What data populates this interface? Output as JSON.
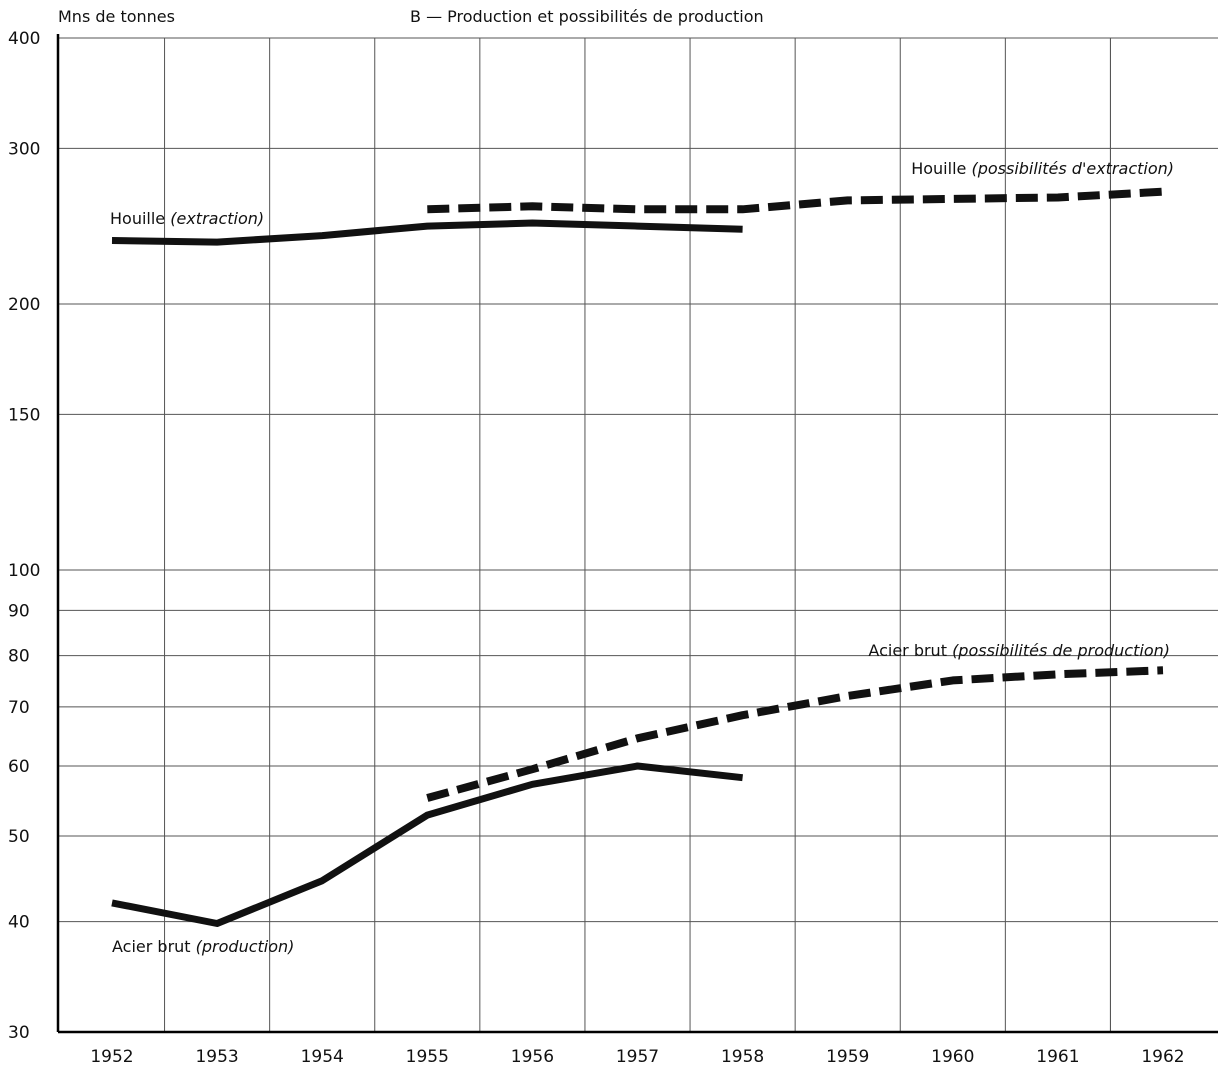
{
  "chart_data": {
    "type": "line",
    "title": "B — Production et possibilités de production",
    "ylabel": "Mns de tonnes",
    "xlabel": "",
    "y_scale": "log",
    "ylim": [
      30,
      400
    ],
    "y_ticks": [
      30,
      40,
      50,
      60,
      70,
      80,
      90,
      100,
      150,
      200,
      300,
      400
    ],
    "x": [
      1952,
      1953,
      1954,
      1955,
      1956,
      1957,
      1958,
      1959,
      1960,
      1961,
      1962
    ],
    "grid": true,
    "series": [
      {
        "name": "Houille (extraction)",
        "name_plain": "Houille",
        "name_italic": "(extraction)",
        "style": "solid",
        "x": [
          1952,
          1953,
          1954,
          1955,
          1956,
          1957,
          1958
        ],
        "values": [
          236,
          235,
          239,
          245,
          247,
          245,
          243
        ]
      },
      {
        "name": "Houille (possibilités d'extraction)",
        "name_plain": "Houille",
        "name_italic": "(possibilités d'extraction)",
        "style": "dashed",
        "x": [
          1955,
          1956,
          1957,
          1958,
          1959,
          1960,
          1961,
          1962
        ],
        "values": [
          256,
          258,
          256,
          256,
          262,
          263,
          264,
          268
        ]
      },
      {
        "name": "Acier brut (production)",
        "name_plain": "Acier brut",
        "name_italic": "(production)",
        "style": "solid",
        "x": [
          1952,
          1953,
          1954,
          1955,
          1956,
          1957,
          1958
        ],
        "values": [
          42,
          39.8,
          44.5,
          52.8,
          57.2,
          60,
          58.2
        ]
      },
      {
        "name": "Acier brut (possibilités de production)",
        "name_plain": "Acier brut",
        "name_italic": "(possibilités de production)",
        "style": "dashed",
        "x": [
          1955,
          1956,
          1957,
          1958,
          1959,
          1960,
          1961,
          1962
        ],
        "values": [
          55.2,
          59.5,
          64.5,
          68.5,
          72,
          75,
          76.2,
          77
        ]
      }
    ],
    "colors": {
      "line": "#111111",
      "grid": "#555555",
      "axis": "#000000"
    }
  }
}
